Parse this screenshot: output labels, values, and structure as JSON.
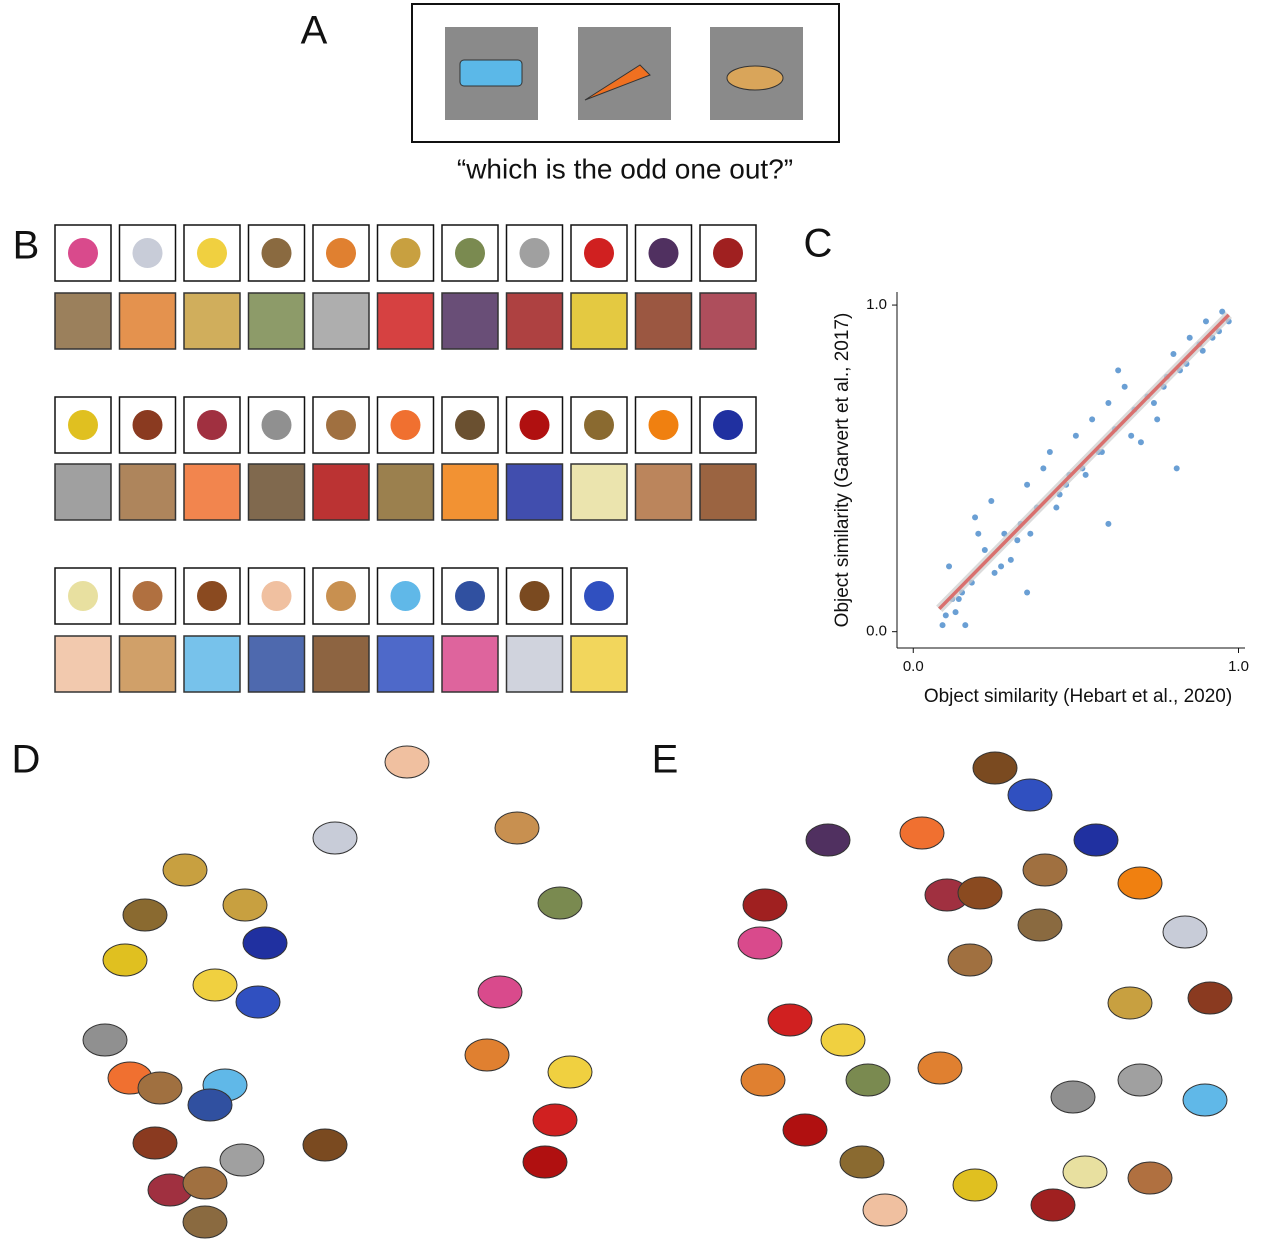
{
  "panel_labels": [
    "A",
    "B",
    "C",
    "D",
    "E"
  ],
  "panel_a": {
    "prompt": "“which is the odd one out?”"
  },
  "chart_data": {
    "type": "scatter",
    "x_label": "Object similarity (Hebart et al., 2020)",
    "y_label": "Object similarity (Garvert et al., 2017)",
    "xlim": [
      -0.05,
      1.02
    ],
    "ylim": [
      -0.05,
      1.04
    ],
    "xticks": [
      {
        "value": 0,
        "label": "0.0"
      },
      {
        "value": 1,
        "label": "1.0"
      }
    ],
    "yticks": [
      {
        "value": 0,
        "label": "0.0"
      },
      {
        "value": 1,
        "label": "1.0"
      }
    ],
    "color": "#6a9fd4",
    "fit": {
      "x": [
        0.08,
        0.97
      ],
      "y": [
        0.07,
        0.97
      ],
      "color": "#d9706e"
    },
    "x": [
      0.1,
      0.12,
      0.09,
      0.15,
      0.11,
      0.13,
      0.18,
      0.2,
      0.14,
      0.16,
      0.22,
      0.25,
      0.19,
      0.28,
      0.3,
      0.24,
      0.33,
      0.35,
      0.27,
      0.38,
      0.4,
      0.32,
      0.42,
      0.45,
      0.36,
      0.48,
      0.5,
      0.44,
      0.52,
      0.55,
      0.47,
      0.58,
      0.6,
      0.53,
      0.62,
      0.65,
      0.57,
      0.68,
      0.7,
      0.63,
      0.72,
      0.75,
      0.67,
      0.78,
      0.8,
      0.74,
      0.82,
      0.85,
      0.77,
      0.88,
      0.9,
      0.84,
      0.92,
      0.95,
      0.89,
      0.97,
      0.94,
      0.81,
      0.6,
      0.35
    ],
    "y": [
      0.05,
      0.1,
      0.02,
      0.12,
      0.2,
      0.06,
      0.15,
      0.3,
      0.1,
      0.02,
      0.25,
      0.18,
      0.35,
      0.3,
      0.22,
      0.4,
      0.33,
      0.45,
      0.2,
      0.38,
      0.5,
      0.28,
      0.55,
      0.42,
      0.3,
      0.48,
      0.6,
      0.38,
      0.5,
      0.65,
      0.45,
      0.55,
      0.7,
      0.48,
      0.62,
      0.75,
      0.55,
      0.68,
      0.58,
      0.8,
      0.72,
      0.65,
      0.6,
      0.78,
      0.85,
      0.7,
      0.8,
      0.9,
      0.75,
      0.88,
      0.95,
      0.82,
      0.9,
      0.98,
      0.86,
      0.95,
      0.92,
      0.5,
      0.33,
      0.12
    ]
  }
}
